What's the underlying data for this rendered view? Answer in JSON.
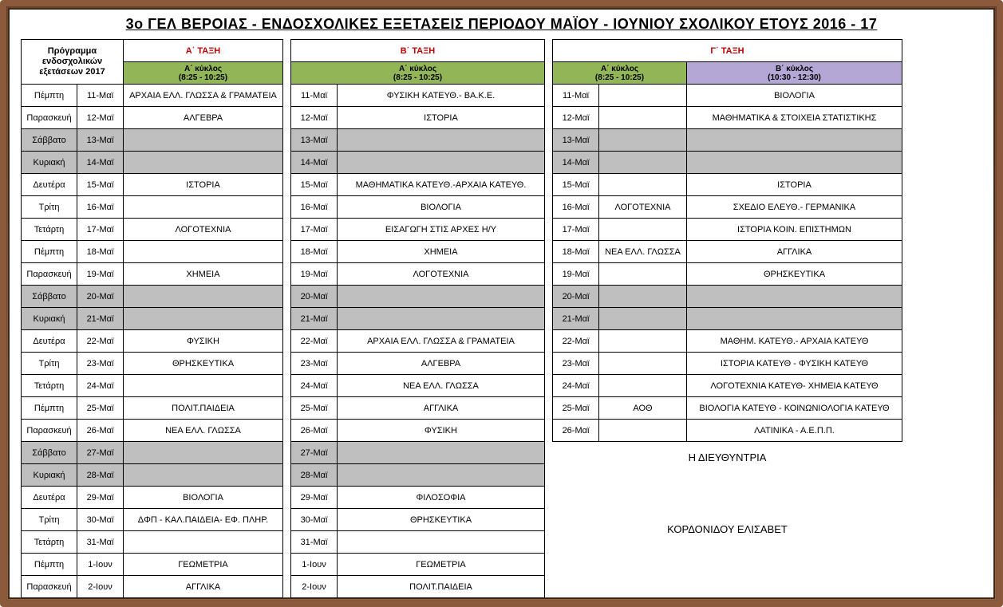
{
  "title": "3o ΓΕΛ ΒΕΡΟΙΑΣ - ΕΝΔΟΣΧΟΛΙΚΕΣ  ΕΞΕΤΑΣΕΙΣ  ΠΕΡΙΟΔΟΥ  ΜΑΪΟΥ - ΙΟΥΝΙΟΥ  ΣΧΟΛΙΚΟΥ  ΕΤΟΥΣ  2016 - 17",
  "headers": {
    "program_line1": "Πρόγραμμα",
    "program_line2": "ενδοσχολικών",
    "program_line3": "εξετάσεων 2017",
    "taxi_a": "Α΄ ΤΑΞΗ",
    "taxi_b": "Β΄ ΤΑΞΗ",
    "taxi_g": "Γ΄ ΤΑΞΗ",
    "kyklos_a": "Α΄ κύκλος",
    "kyklos_b": "Β΄ κύκλος",
    "time_a": "(8:25 - 10:25)",
    "time_b": "(10:30 - 12:30)"
  },
  "colors": {
    "frame_brown": "#8b5a3c",
    "taxi_red": "#c00000",
    "kyklos_a_bg": "#92b558",
    "kyklos_b_bg": "#b4a7d6",
    "weekend_bg": "#bfbfbf",
    "border": "#000000"
  },
  "signature": {
    "title": "Η ΔΙΕΥΘΥΝΤΡΙΑ",
    "name": "ΚΟΡΔΟΝΙΔΟΥ ΕΛΙΣΑΒΕΤ"
  },
  "rows": [
    {
      "day": "Πέμπτη",
      "date": "11-Μαϊ",
      "a": "ΑΡΧΑΙΑ ΕΛΛ. ΓΛΩΣΣΑ & ΓΡΑΜΑΤΕΙΑ",
      "date_b": "11-Μαϊ",
      "b": "ΦΥΣΙΚΗ ΚΑΤΕΥΘ.- ΒΑ.Κ.Ε.",
      "date_g": "11-Μαϊ",
      "g1": "",
      "g2": "ΒΙΟΛΟΓΙΑ",
      "wknd": false,
      "has_g": true
    },
    {
      "day": "Παρασκευή",
      "date": "12-Μαϊ",
      "a": "ΑΛΓΕΒΡΑ",
      "date_b": "12-Μαϊ",
      "b": "ΙΣΤΟΡΙΑ",
      "date_g": "12-Μαϊ",
      "g1": "",
      "g2": "ΜΑΘΗΜΑΤΙΚΑ & ΣΤΟΙΧΕΙΑ ΣΤΑΤΙΣΤΙΚΗΣ",
      "wknd": false,
      "has_g": true
    },
    {
      "day": "Σάββατο",
      "date": "13-Μαϊ",
      "a": "",
      "date_b": "13-Μαϊ",
      "b": "",
      "date_g": "13-Μαϊ",
      "g1": "",
      "g2": "",
      "wknd": true,
      "has_g": true
    },
    {
      "day": "Κυριακή",
      "date": "14-Μαϊ",
      "a": "",
      "date_b": "14-Μαϊ",
      "b": "",
      "date_g": "14-Μαϊ",
      "g1": "",
      "g2": "",
      "wknd": true,
      "has_g": true
    },
    {
      "day": "Δευτέρα",
      "date": "15-Μαϊ",
      "a": "ΙΣΤΟΡΙΑ",
      "date_b": "15-Μαϊ",
      "b": "ΜΑΘΗΜΑΤΙΚΑ ΚΑΤΕΥΘ.-ΑΡΧΑΙΑ ΚΑΤΕΥΘ.",
      "date_g": "15-Μαϊ",
      "g1": "",
      "g2": "ΙΣΤΟΡΙΑ",
      "wknd": false,
      "has_g": true
    },
    {
      "day": "Τρίτη",
      "date": "16-Μαϊ",
      "a": "",
      "date_b": "16-Μαϊ",
      "b": "ΒΙΟΛΟΓΙΑ",
      "date_g": "16-Μαϊ",
      "g1": "ΛΟΓΟΤΕΧΝΙΑ",
      "g2": "ΣΧΕΔΙΟ ΕΛΕΥΘ.- ΓΕΡΜΑΝΙΚΑ",
      "wknd": false,
      "has_g": true
    },
    {
      "day": "Τετάρτη",
      "date": "17-Μαϊ",
      "a": "ΛΟΓΟΤΕΧΝΙΑ",
      "date_b": "17-Μαϊ",
      "b": "ΕΙΣΑΓΩΓΗ ΣΤΙΣ ΑΡΧΕΣ Η/Υ",
      "date_g": "17-Μαϊ",
      "g1": "",
      "g2": "ΙΣΤΟΡΙΑ ΚΟΙΝ. ΕΠΙΣΤΗΜΩΝ",
      "wknd": false,
      "has_g": true
    },
    {
      "day": "Πέμπτη",
      "date": "18-Μαϊ",
      "a": "",
      "date_b": "18-Μαϊ",
      "b": "ΧΗΜΕΙΑ",
      "date_g": "18-Μαϊ",
      "g1": "ΝΕΑ ΕΛΛ. ΓΛΩΣΣΑ",
      "g2": "ΑΓΓΛΙΚΑ",
      "wknd": false,
      "has_g": true
    },
    {
      "day": "Παρασκευή",
      "date": "19-Μαϊ",
      "a": "ΧΗΜΕΙΑ",
      "date_b": "19-Μαϊ",
      "b": "ΛΟΓΟΤΕΧΝΙΑ",
      "date_g": "19-Μαϊ",
      "g1": "",
      "g2": "ΘΡΗΣΚΕΥΤΙΚΑ",
      "wknd": false,
      "has_g": true
    },
    {
      "day": "Σάββατο",
      "date": "20-Μαϊ",
      "a": "",
      "date_b": "20-Μαϊ",
      "b": "",
      "date_g": "20-Μαϊ",
      "g1": "",
      "g2": "",
      "wknd": true,
      "has_g": true
    },
    {
      "day": "Κυριακή",
      "date": "21-Μαϊ",
      "a": "",
      "date_b": "21-Μαϊ",
      "b": "",
      "date_g": "21-Μαϊ",
      "g1": "",
      "g2": "",
      "wknd": true,
      "has_g": true
    },
    {
      "day": "Δευτέρα",
      "date": "22-Μαϊ",
      "a": "ΦΥΣΙΚΗ",
      "date_b": "22-Μαϊ",
      "b": "ΑΡΧΑΙΑ ΕΛΛ. ΓΛΩΣΣΑ & ΓΡΑΜΑΤΕΙΑ",
      "date_g": "22-Μαϊ",
      "g1": "",
      "g2": "ΜΑΘΗΜ. ΚΑΤΕΥΘ.- ΑΡΧΑΙΑ ΚΑΤΕΥΘ",
      "wknd": false,
      "has_g": true
    },
    {
      "day": "Τρίτη",
      "date": "23-Μαϊ",
      "a": "ΘΡΗΣΚΕΥΤΙΚΑ",
      "date_b": "23-Μαϊ",
      "b": "ΑΛΓΕΒΡΑ",
      "date_g": "23-Μαϊ",
      "g1": "",
      "g2": "ΙΣΤΟΡΙΑ  ΚΑΤΕΥΘ - ΦΥΣΙΚΗ ΚΑΤΕΥΘ",
      "wknd": false,
      "has_g": true
    },
    {
      "day": "Τετάρτη",
      "date": "24-Μαϊ",
      "a": "",
      "date_b": "24-Μαϊ",
      "b": "ΝΕΑ ΕΛΛ. ΓΛΩΣΣΑ",
      "date_g": "24-Μαϊ",
      "g1": "",
      "g2": "ΛΟΓΟΤΕΧΝΙΑ ΚΑΤΕΥΘ- ΧΗΜΕΙΑ ΚΑΤΕΥΘ",
      "wknd": false,
      "has_g": true
    },
    {
      "day": "Πέμπτη",
      "date": "25-Μαϊ",
      "a": "ΠΟΛΙΤ.ΠΑΙΔΕΙΑ",
      "date_b": "25-Μαϊ",
      "b": "ΑΓΓΛΙΚΑ",
      "date_g": "25-Μαϊ",
      "g1": "ΑΟΘ",
      "g2": "ΒΙΟΛΟΓΙΑ ΚΑΤΕΥΘ - ΚΟΙΝΩΝΙΟΛΟΓΙΑ ΚΑΤΕΥΘ",
      "wknd": false,
      "has_g": true
    },
    {
      "day": "Παρασκευή",
      "date": "26-Μαϊ",
      "a": "ΝΕΑ ΕΛΛ. ΓΛΩΣΣΑ",
      "date_b": "26-Μαϊ",
      "b": "ΦΥΣΙΚΗ",
      "date_g": "26-Μαϊ",
      "g1": "",
      "g2": "ΛΑΤΙΝΙΚΑ - Α.Ε.Π.Π.",
      "wknd": false,
      "has_g": true
    },
    {
      "day": "Σάββατο",
      "date": "27-Μαϊ",
      "a": "",
      "date_b": "27-Μαϊ",
      "b": "",
      "date_g": "",
      "g1": "",
      "g2": "",
      "wknd": true,
      "has_g": false
    },
    {
      "day": "Κυριακή",
      "date": "28-Μαϊ",
      "a": "",
      "date_b": "28-Μαϊ",
      "b": "",
      "date_g": "",
      "g1": "",
      "g2": "",
      "wknd": true,
      "has_g": false
    },
    {
      "day": "Δευτέρα",
      "date": "29-Μαϊ",
      "a": "ΒΙΟΛΟΓΙΑ",
      "date_b": "29-Μαϊ",
      "b": "ΦΙΛΟΣΟΦΙΑ",
      "date_g": "",
      "g1": "",
      "g2": "",
      "wknd": false,
      "has_g": false
    },
    {
      "day": "Τρίτη",
      "date": "30-Μαϊ",
      "a": "ΔΦΠ - ΚΑΛ.ΠΑΙΔΕΙΑ- ΕΦ. ΠΛΗΡ.",
      "date_b": "30-Μαϊ",
      "b": "ΘΡΗΣΚΕΥΤΙΚΑ",
      "date_g": "",
      "g1": "",
      "g2": "",
      "wknd": false,
      "has_g": false
    },
    {
      "day": "Τετάρτη",
      "date": "31-Μαϊ",
      "a": "",
      "date_b": "31-Μαϊ",
      "b": "",
      "date_g": "",
      "g1": "",
      "g2": "",
      "wknd": false,
      "has_g": false
    },
    {
      "day": "Πέμπτη",
      "date": "1-Ιουν",
      "a": "ΓΕΩΜΕΤΡΙΑ",
      "date_b": "1-Ιουν",
      "b": "ΓΕΩΜΕΤΡΙΑ",
      "date_g": "",
      "g1": "",
      "g2": "",
      "wknd": false,
      "has_g": false
    },
    {
      "day": "Παρασκευή",
      "date": "2-Ιουν",
      "a": "ΑΓΓΛΙΚΑ",
      "date_b": "2-Ιουν",
      "b": "ΠΟΛΙΤ.ΠΑΙΔΕΙΑ",
      "date_g": "",
      "g1": "",
      "g2": "",
      "wknd": false,
      "has_g": false
    }
  ]
}
